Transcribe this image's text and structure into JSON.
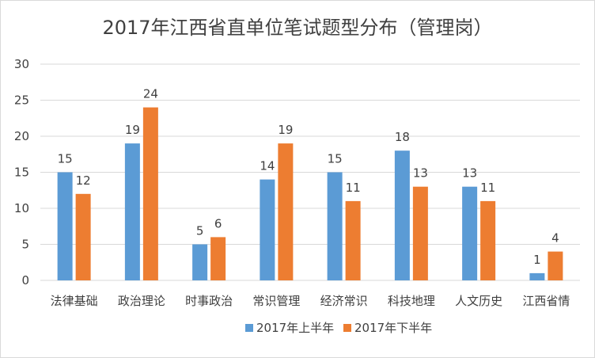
{
  "chart_data": {
    "type": "bar",
    "title": "2017年江西省直单位笔试题型分布（管理岗）",
    "categories": [
      "法律基础",
      "政治理论",
      "时事政治",
      "常识管理",
      "经济常识",
      "科技地理",
      "人文历史",
      "江西省情"
    ],
    "series": [
      {
        "name": "2017年上半年",
        "values": [
          15,
          19,
          5,
          14,
          15,
          18,
          13,
          1
        ],
        "color": "#5b9bd5"
      },
      {
        "name": "2017年下半年",
        "values": [
          12,
          24,
          6,
          19,
          11,
          13,
          11,
          4
        ],
        "color": "#ed7d31"
      }
    ],
    "yticks": [
      0,
      5,
      10,
      15,
      20,
      25,
      30
    ],
    "ylim": [
      0,
      30
    ],
    "grid": true,
    "legend_position": "bottom"
  }
}
